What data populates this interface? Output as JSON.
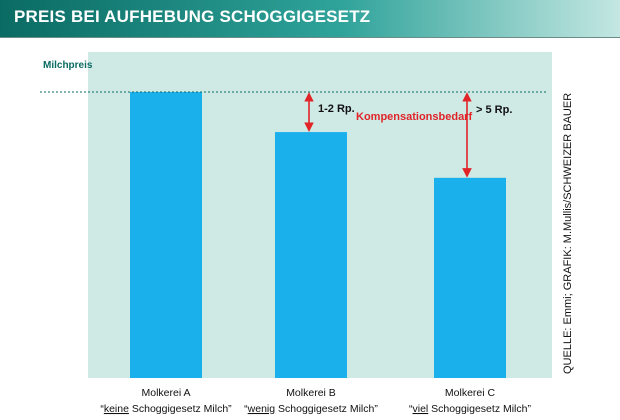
{
  "header": {
    "title": "PREIS BEI AUFHEBUNG SCHOGGIGESETZ"
  },
  "source": {
    "text": "QUELLE: Emmi; GRAFIK: M.Mullis/SCHWEIZER BAUER"
  },
  "colors": {
    "header_start": "#0a6b63",
    "header_end": "#c4e7e2",
    "panel_bg": "#cfe9e5",
    "bar": "#1ab0ec",
    "arrow": "#e02428",
    "annotation_label": "#e02428",
    "reference_line": "#0a6b63"
  },
  "chart_data": {
    "type": "bar",
    "title": "PREIS BEI AUFHEBUNG SCHOGGIGESETZ",
    "xlabel": "",
    "ylabel": "",
    "grid": false,
    "y_axis_labels": false,
    "reference_line": {
      "label": "Milchpreis",
      "value": 100
    },
    "categories": [
      {
        "name": "Molkerei A",
        "desc_prefix": "“",
        "desc_underlined": "keine",
        "desc_suffix": " Schoggigesetz Milch”"
      },
      {
        "name": "Molkerei B",
        "desc_prefix": "“",
        "desc_underlined": "wenig",
        "desc_suffix": " Schoggigesetz Milch”"
      },
      {
        "name": "Molkerei C",
        "desc_prefix": "“",
        "desc_underlined": "viel",
        "desc_suffix": " Schoggigesetz Milch”"
      }
    ],
    "values": [
      100,
      86,
      70
    ],
    "ylim": [
      0,
      114
    ],
    "annotations": [
      {
        "bar_index": 1,
        "label": "1-2 Rp."
      },
      {
        "bar_index": 2,
        "label": "> 5 Rp."
      }
    ],
    "annotation_caption": "Kompensationsbedarf"
  }
}
